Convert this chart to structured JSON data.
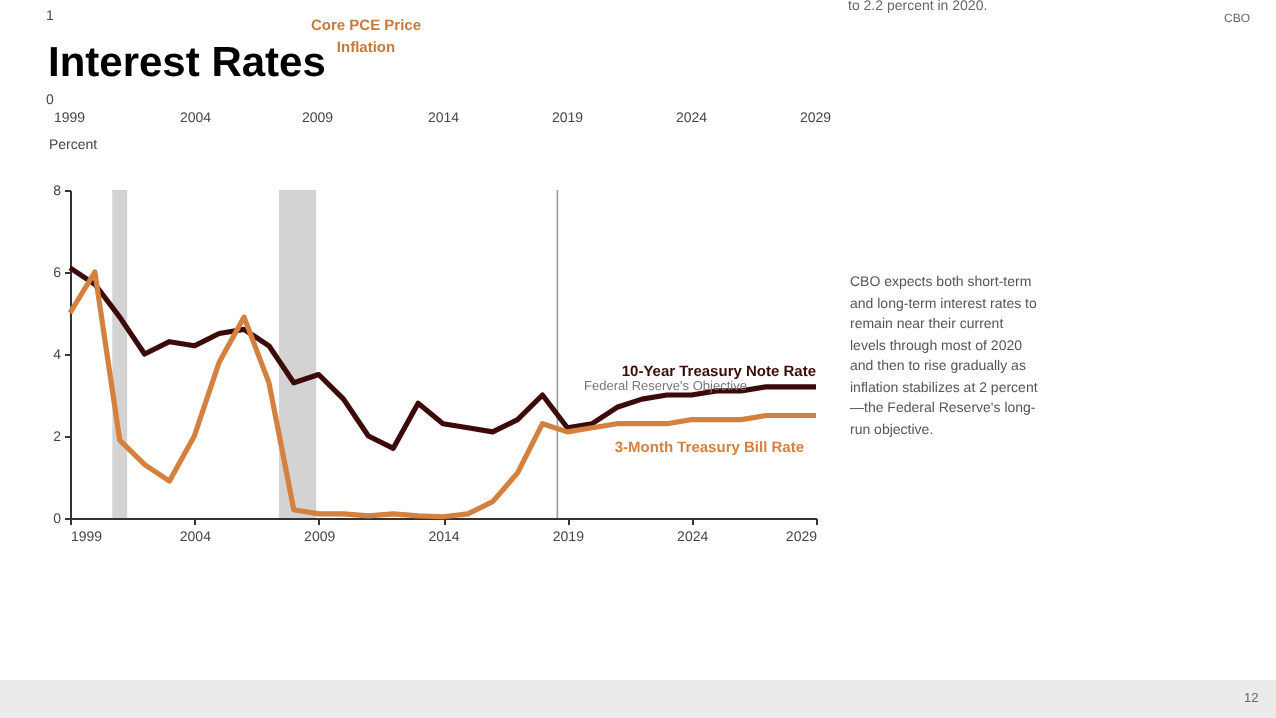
{
  "chart_data": {
    "type": "line",
    "title": "Interest Rates",
    "ylabel": "Percent",
    "x": [
      1999,
      2000,
      2001,
      2002,
      2003,
      2004,
      2005,
      2006,
      2007,
      2008,
      2009,
      2010,
      2011,
      2012,
      2013,
      2014,
      2015,
      2016,
      2017,
      2018,
      2019,
      2020,
      2021,
      2022,
      2023,
      2024,
      2025,
      2026,
      2027,
      2028,
      2029
    ],
    "series": [
      {
        "name": "10-Year Treasury Note Rate",
        "color": "#3d0a0a",
        "values": [
          6.1,
          5.7,
          4.9,
          4.0,
          4.3,
          4.2,
          4.5,
          4.6,
          4.2,
          3.3,
          3.5,
          2.9,
          2.0,
          1.7,
          2.8,
          2.3,
          2.2,
          2.1,
          2.4,
          3.0,
          2.2,
          2.3,
          2.7,
          2.9,
          3.0,
          3.0,
          3.1,
          3.1,
          3.2,
          3.2,
          3.2
        ]
      },
      {
        "name": "3-Month Treasury Bill Rate",
        "color": "#d4803f",
        "values": [
          5.0,
          6.0,
          1.9,
          1.3,
          0.9,
          2.0,
          3.8,
          4.9,
          3.3,
          0.2,
          0.1,
          0.1,
          0.05,
          0.1,
          0.05,
          0.03,
          0.1,
          0.4,
          1.1,
          2.3,
          2.1,
          2.2,
          2.3,
          2.3,
          2.3,
          2.4,
          2.4,
          2.4,
          2.5,
          2.5,
          2.5
        ]
      }
    ],
    "xlim": [
      1999,
      2029
    ],
    "xticks": [
      1999,
      2004,
      2009,
      2014,
      2019,
      2024,
      2029
    ],
    "ylim": [
      0,
      8
    ],
    "yticks": [
      0,
      2,
      4,
      6,
      8
    ],
    "bands": [
      {
        "axis": "x",
        "from": 2000.7,
        "to": 2001.3,
        "color": "#d3d3d3"
      },
      {
        "axis": "x",
        "from": 2007.4,
        "to": 2008.9,
        "color": "#d3d3d3"
      }
    ],
    "ref_lines": [
      {
        "axis": "x",
        "value": 2018.6,
        "color": "#9a9a9a"
      }
    ],
    "grid": false,
    "legend": false,
    "annotations": [
      "CBO expects both short-term and long-term interest rates to remain near their current levels through most of 2020 and then to rise gradually as inflation stabilizes at 2 percent—the Federal Reserve's long-run objective.",
      "Federal Reserve's Objective",
      "CBO",
      "12",
      "Core PCE Price Inflation",
      "to 2.2 percent in 2020.",
      "1",
      "0",
      "1999",
      "2004",
      "2009",
      "2014",
      "2019",
      "2024",
      "2029"
    ]
  }
}
